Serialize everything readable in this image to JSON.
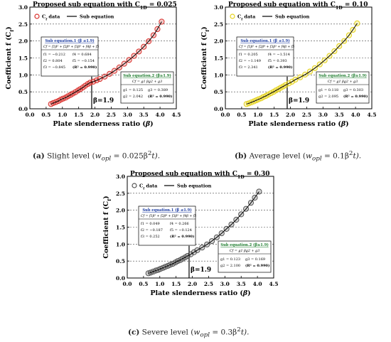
{
  "chart_data": [
    {
      "type": "scatter",
      "title": "Proposed sub equation with C",
      "title_sub": "1D",
      "title_value": " = 0.025",
      "xlabel": "Plate slenderness ratio (β)",
      "ylabel": "Coefficient f (C",
      "ylabel_sub": "f",
      "ylabel_end": ")",
      "xlim": [
        0.0,
        4.5
      ],
      "ylim": [
        0.0,
        3.0
      ],
      "xticks": [
        "0.0",
        "0.5",
        "1.0",
        "1.5",
        "2.0",
        "2.5",
        "3.0",
        "3.5",
        "4.0",
        "4.5"
      ],
      "yticks": [
        "0.0",
        "0.5",
        "1.0",
        "1.5",
        "2.0",
        "2.5",
        "3.0"
      ],
      "grid": "horizontal dashed",
      "legend": [
        "Cf data",
        "Sub equation"
      ],
      "marker_color": "#d9302c",
      "break_label": "β=1.9",
      "break_x": 1.9,
      "x": [
        0.65,
        0.72,
        0.8,
        0.88,
        0.95,
        1.02,
        1.1,
        1.17,
        1.25,
        1.32,
        1.4,
        1.48,
        1.55,
        1.63,
        1.7,
        1.78,
        1.85,
        1.95,
        2.05,
        2.15,
        2.3,
        2.45,
        2.6,
        2.75,
        2.9,
        3.05,
        3.2,
        3.35,
        3.5,
        3.65,
        3.8,
        3.92,
        4.05
      ],
      "y": [
        0.14,
        0.17,
        0.2,
        0.23,
        0.27,
        0.3,
        0.33,
        0.37,
        0.41,
        0.45,
        0.49,
        0.54,
        0.58,
        0.63,
        0.68,
        0.73,
        0.77,
        0.8,
        0.84,
        0.88,
        0.95,
        1.03,
        1.12,
        1.22,
        1.33,
        1.44,
        1.56,
        1.69,
        1.83,
        1.99,
        2.17,
        2.35,
        2.57
      ],
      "box1": {
        "title": "Sub equation.1 (β ≤1.9)",
        "formula": "Cf = f1β⁵ + f2β⁴ + f3β³ + f4β + f5",
        "rows": [
          [
            "f1 = −0.212",
            "f4 = 0.684"
          ],
          [
            "f2 = 0.804",
            "f5 = −0.154"
          ],
          [
            "f3 = −0.845",
            "(R² = 0.990)"
          ]
        ]
      },
      "box2": {
        "title": "Sub equation.2 (β≥1.9)",
        "formula": "Cf = g1 βg2 + g3",
        "rows": [
          [
            "g1 = 0.125",
            "g3 = 0.389"
          ],
          [
            "g2 = 2.042",
            "(R² = 0.990)"
          ]
        ]
      }
    },
    {
      "type": "scatter",
      "title": "Proposed sub equation with C",
      "title_sub": "1D",
      "title_value": " = 0.10",
      "xlabel": "Plate slenderness ratio (β)",
      "ylabel": "Coefficient f (C",
      "ylabel_sub": "f",
      "ylabel_end": ")",
      "xlim": [
        0.0,
        4.5
      ],
      "ylim": [
        0.0,
        3.0
      ],
      "xticks": [
        "0.0",
        "0.5",
        "1.0",
        "1.5",
        "2.0",
        "2.5",
        "3.0",
        "3.5",
        "4.0",
        "4.5"
      ],
      "yticks": [
        "0.0",
        "0.5",
        "1.0",
        "1.5",
        "2.0",
        "2.5",
        "3.0"
      ],
      "grid": "horizontal dashed",
      "legend": [
        "Cf data",
        "Sub equation"
      ],
      "marker_color": "#e5d21a",
      "break_label": "β=1.9",
      "break_x": 1.9,
      "x": [
        0.65,
        0.72,
        0.8,
        0.88,
        0.95,
        1.02,
        1.1,
        1.17,
        1.25,
        1.32,
        1.4,
        1.48,
        1.55,
        1.63,
        1.7,
        1.78,
        1.85,
        1.95,
        2.05,
        2.15,
        2.3,
        2.45,
        2.6,
        2.75,
        2.9,
        3.05,
        3.2,
        3.35,
        3.5,
        3.65,
        3.8,
        3.92,
        4.05
      ],
      "y": [
        0.14,
        0.16,
        0.19,
        0.22,
        0.25,
        0.28,
        0.31,
        0.35,
        0.38,
        0.42,
        0.46,
        0.5,
        0.54,
        0.58,
        0.62,
        0.66,
        0.7,
        0.75,
        0.8,
        0.86,
        0.93,
        1.01,
        1.1,
        1.2,
        1.31,
        1.43,
        1.56,
        1.7,
        1.85,
        2.0,
        2.17,
        2.33,
        2.52
      ],
      "box1": {
        "title": "Sub equation.1 (β ≤1.9)",
        "formula": "Cf = f1β⁵ + f2β⁴ + f3β³ + f4β + f5",
        "rows": [
          [
            "f1 = 0.205",
            "f4 = −1.514"
          ],
          [
            "f2 = −1.149",
            "f5 = 0.393"
          ],
          [
            "f3 = 2.341",
            "(R² = 0.990)"
          ]
        ]
      },
      "box2": {
        "title": "Sub equation.2 (β≥1.9)",
        "formula": "Cf = g1 βg2 + g3",
        "rows": [
          [
            "g1 = 0.118",
            "g3 = 0.303"
          ],
          [
            "g2 = 2.095",
            "(R² = 0.990)"
          ]
        ]
      }
    },
    {
      "type": "scatter",
      "title": "Proposed sub equation with C",
      "title_sub": "1D",
      "title_value": " = 0.30",
      "xlabel": "Plate slenderness ratio (β)",
      "ylabel": "Coefficient f (C",
      "ylabel_sub": "f",
      "ylabel_end": ")",
      "xlim": [
        0.0,
        4.5
      ],
      "ylim": [
        0.0,
        3.0
      ],
      "xticks": [
        "0.0",
        "0.5",
        "1.0",
        "1.5",
        "2.0",
        "2.5",
        "3.0",
        "3.5",
        "4.0",
        "4.5"
      ],
      "yticks": [
        "0.0",
        "0.5",
        "1.0",
        "1.5",
        "2.0",
        "2.5",
        "3.0"
      ],
      "grid": "horizontal dashed",
      "legend": [
        "Cf data",
        "Sub equation"
      ],
      "marker_color": "#555555",
      "break_label": "β=1.9",
      "break_x": 1.9,
      "x": [
        0.65,
        0.72,
        0.8,
        0.88,
        0.95,
        1.02,
        1.1,
        1.17,
        1.25,
        1.32,
        1.4,
        1.48,
        1.55,
        1.63,
        1.7,
        1.78,
        1.85,
        1.95,
        2.05,
        2.15,
        2.3,
        2.45,
        2.6,
        2.75,
        2.9,
        3.05,
        3.2,
        3.35,
        3.5,
        3.65,
        3.8,
        3.92,
        4.05
      ],
      "y": [
        0.14,
        0.16,
        0.19,
        0.22,
        0.24,
        0.27,
        0.3,
        0.33,
        0.36,
        0.39,
        0.42,
        0.46,
        0.5,
        0.53,
        0.57,
        0.61,
        0.65,
        0.7,
        0.76,
        0.82,
        0.9,
        0.99,
        1.09,
        1.2,
        1.32,
        1.45,
        1.58,
        1.72,
        1.88,
        2.04,
        2.22,
        2.37,
        2.55
      ],
      "box1": {
        "title": "Sub equation.1 (β ≤1.9)",
        "formula": "Cf = f1β⁵ + f2β⁴ + f3β³ + f4β + f5",
        "rows": [
          [
            "f1 = 0.049",
            "f4 = 0.266"
          ],
          [
            "f2 = −0.187",
            "f5 = −0.124"
          ],
          [
            "f3 = 0.252",
            "(R² = 0.990)"
          ]
        ]
      },
      "box2": {
        "title": "Sub equation.2 (β≥1.9)",
        "formula": "Cf = g1 βg2 + g3",
        "rows": [
          [
            "g1 = 0.123",
            "g3 = 0.169"
          ],
          [
            "g2 = 2.100",
            "(R² = 0.990)"
          ]
        ]
      }
    }
  ],
  "captions": [
    {
      "label": "(a)",
      "text": " Slight level (",
      "formula": "w",
      "formula_sub": "opl",
      "formula_rest": " = 0.025β",
      "formula_sup": "2",
      "formula_end": "t)."
    },
    {
      "label": "(b)",
      "text": " Average level (",
      "formula": "w",
      "formula_sub": "opl",
      "formula_rest": " = 0.1β",
      "formula_sup": "2",
      "formula_end": "t)."
    },
    {
      "label": "(c)",
      "text": " Severe level (",
      "formula": "w",
      "formula_sub": "opl",
      "formula_rest": " = 0.3β",
      "formula_sup": "2",
      "formula_end": "t)."
    }
  ]
}
